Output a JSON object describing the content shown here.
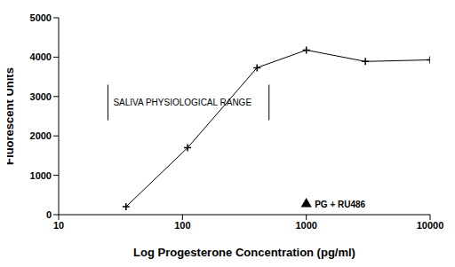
{
  "chart_data": {
    "type": "line",
    "x_label": "Log Progesterone Concentration (pg/ml)",
    "y_label": "Fluorescent Units",
    "log": "x",
    "xlim": [
      10,
      10000
    ],
    "xticks": [
      10,
      100,
      1000,
      10000
    ],
    "ylim": [
      0,
      5000
    ],
    "yticks": [
      0,
      1000,
      2000,
      3000,
      4000,
      5000
    ],
    "grid": false,
    "x": [
      35,
      110,
      400,
      1000,
      3000,
      10000
    ],
    "values": [
      200,
      1700,
      3730,
      4180,
      3890,
      3930
    ],
    "color": "#000000",
    "marker": "plus",
    "annotations": [
      {
        "text": "SALIVA PHYSIOLOGICAL RANGE",
        "x_range": [
          25,
          500
        ],
        "y_range": [
          2400,
          3300
        ]
      },
      {
        "text": "PG + RU486",
        "x": 1000,
        "y": 270,
        "marker": "triangle"
      }
    ]
  }
}
